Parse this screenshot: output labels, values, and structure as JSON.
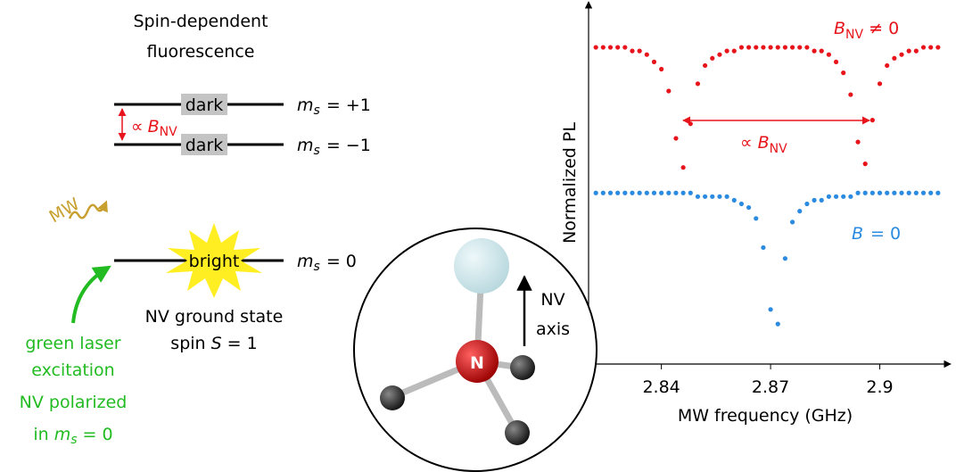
{
  "diagram": {
    "title": [
      "Spin-dependent",
      "fluorescence"
    ],
    "levels": [
      {
        "box": "dark",
        "label": [
          "m",
          "s",
          "= +1"
        ]
      },
      {
        "box": "dark",
        "label": [
          "m",
          "s",
          "= −1"
        ]
      },
      {
        "box": "bright",
        "label": [
          "m",
          "s",
          "= 0"
        ]
      }
    ],
    "splitting": [
      "∝",
      "B",
      "NV"
    ],
    "mw": "MW",
    "ground_state": {
      "line1": "NV ground state",
      "line2": [
        "spin",
        "S",
        "= 1"
      ]
    },
    "laser": [
      "green laser",
      "excitation",
      "NV polarized",
      [
        "in",
        "m",
        "s",
        "= 0"
      ]
    ],
    "atom": "N",
    "axis_label": [
      "NV",
      "axis"
    ]
  },
  "chart_data": {
    "type": "scatter",
    "xlabel": "MW frequency (GHz)",
    "ylabel": "Normalized PL",
    "xlim": [
      2.82,
      2.918
    ],
    "ylim": [
      0,
      1
    ],
    "xticks": [
      2.84,
      2.87,
      2.9
    ],
    "x": [
      2.822,
      2.824,
      2.826,
      2.828,
      2.83,
      2.832,
      2.834,
      2.836,
      2.838,
      2.84,
      2.842,
      2.844,
      2.846,
      2.848,
      2.85,
      2.852,
      2.854,
      2.856,
      2.858,
      2.86,
      2.862,
      2.864,
      2.866,
      2.868,
      2.87,
      2.872,
      2.874,
      2.876,
      2.878,
      2.88,
      2.882,
      2.884,
      2.886,
      2.888,
      2.89,
      2.892,
      2.894,
      2.896,
      2.898,
      2.9,
      2.902,
      2.904,
      2.906,
      2.908,
      2.91,
      2.912,
      2.914,
      2.916
    ],
    "series": [
      {
        "color": "#e8141b",
        "values": [
          0.87,
          0.87,
          0.87,
          0.87,
          0.87,
          0.86,
          0.86,
          0.85,
          0.83,
          0.81,
          0.75,
          0.62,
          0.54,
          0.66,
          0.77,
          0.82,
          0.84,
          0.85,
          0.86,
          0.86,
          0.87,
          0.87,
          0.87,
          0.87,
          0.87,
          0.87,
          0.87,
          0.87,
          0.87,
          0.87,
          0.86,
          0.86,
          0.85,
          0.83,
          0.8,
          0.74,
          0.61,
          0.55,
          0.67,
          0.77,
          0.82,
          0.84,
          0.85,
          0.86,
          0.86,
          0.87,
          0.87,
          0.87
        ]
      },
      {
        "color": "#2b8be0",
        "values": [
          0.47,
          0.47,
          0.47,
          0.47,
          0.47,
          0.47,
          0.47,
          0.47,
          0.47,
          0.47,
          0.47,
          0.47,
          0.47,
          0.47,
          0.46,
          0.46,
          0.46,
          0.46,
          0.46,
          0.45,
          0.44,
          0.43,
          0.4,
          0.32,
          0.15,
          0.11,
          0.29,
          0.39,
          0.42,
          0.44,
          0.45,
          0.45,
          0.46,
          0.46,
          0.46,
          0.46,
          0.47,
          0.47,
          0.47,
          0.47,
          0.47,
          0.47,
          0.47,
          0.47,
          0.47,
          0.47,
          0.47,
          0.47
        ]
      }
    ],
    "annotations": [
      [
        "B",
        "NV",
        "≠ 0"
      ],
      [
        "∝",
        "B",
        "NV"
      ],
      [
        "B",
        "= 0"
      ]
    ]
  }
}
